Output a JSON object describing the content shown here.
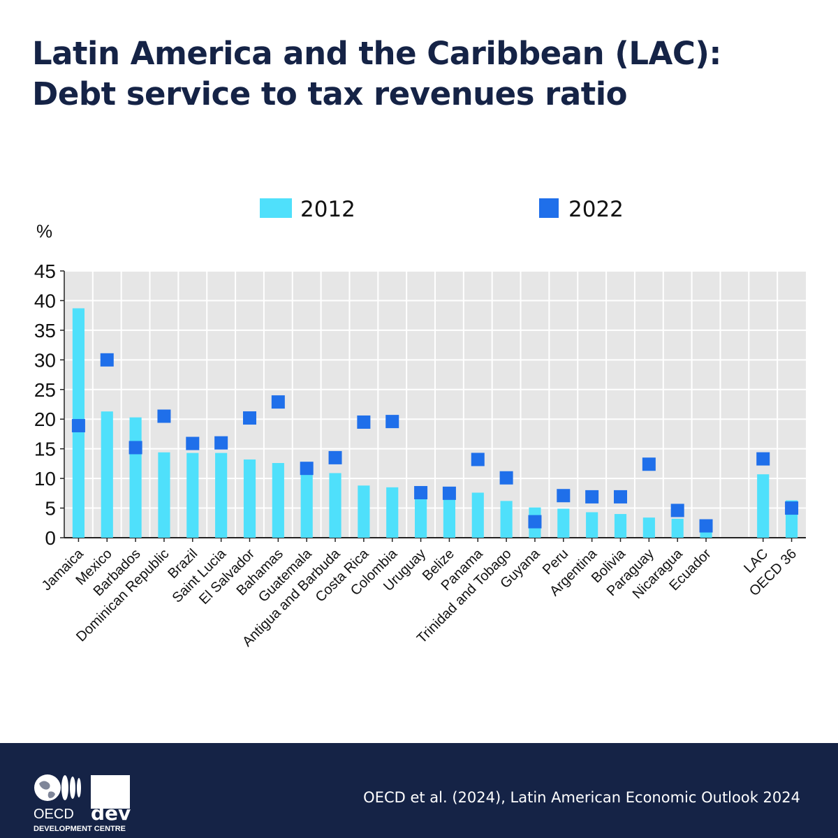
{
  "title": {
    "line1": "Latin America and the Caribbean (LAC):",
    "line2": "Debt service to tax revenues ratio"
  },
  "colors": {
    "background": "#ffffff",
    "title": "#152346",
    "plot_background": "#e6e6e6",
    "series_2012": "#4fe0fb",
    "series_2022": "#1f6fea",
    "footer": "#152346"
  },
  "chart_data": {
    "type": "bar",
    "ylabel": "%",
    "xlabel": "",
    "ylim": [
      0,
      45
    ],
    "yticks": [
      0,
      5,
      10,
      15,
      20,
      25,
      30,
      35,
      40,
      45
    ],
    "grid": true,
    "legend_position": "top",
    "categories": [
      "Jamaica",
      "Mexico",
      "Barbados",
      "Dominican Republic",
      "Brazil",
      "Saint Lucia",
      "El Salvador",
      "Bahamas",
      "Guatemala",
      "Antigua and Barbuda",
      "Costa Rica",
      "Colombia",
      "Uruguay",
      "Belize",
      "Panama",
      "Trinidad and Tobago",
      "Guyana",
      "Peru",
      "Argentina",
      "Bolivia",
      "Paraguay",
      "Nicaragua",
      "Ecuador",
      "",
      "LAC",
      "OECD 36"
    ],
    "series": [
      {
        "name": "2012",
        "mark": "bar",
        "values": [
          38.7,
          21.3,
          20.3,
          14.4,
          14.3,
          14.3,
          13.2,
          12.6,
          10.8,
          10.9,
          8.8,
          8.5,
          6.8,
          6.8,
          7.6,
          6.2,
          5.1,
          4.9,
          4.3,
          4.0,
          3.4,
          3.2,
          1.0,
          null,
          10.7,
          6.3
        ],
        "color": "#4fe0fb"
      },
      {
        "name": "2022",
        "mark": "square",
        "values": [
          18.9,
          30.0,
          15.2,
          20.5,
          15.9,
          16.0,
          20.2,
          22.9,
          11.7,
          13.5,
          19.5,
          19.6,
          7.6,
          7.5,
          13.2,
          10.1,
          2.7,
          7.1,
          6.9,
          6.9,
          12.4,
          4.6,
          2.0,
          null,
          13.3,
          5.0
        ],
        "color": "#1f6fea"
      }
    ]
  },
  "footer": {
    "source": "OECD et al. (2024), Latin American Economic Outlook 2024",
    "logo_text_oecd": "OECD",
    "logo_text_dev": "dev",
    "logo_text_centre": "DEVELOPMENT CENTRE"
  }
}
